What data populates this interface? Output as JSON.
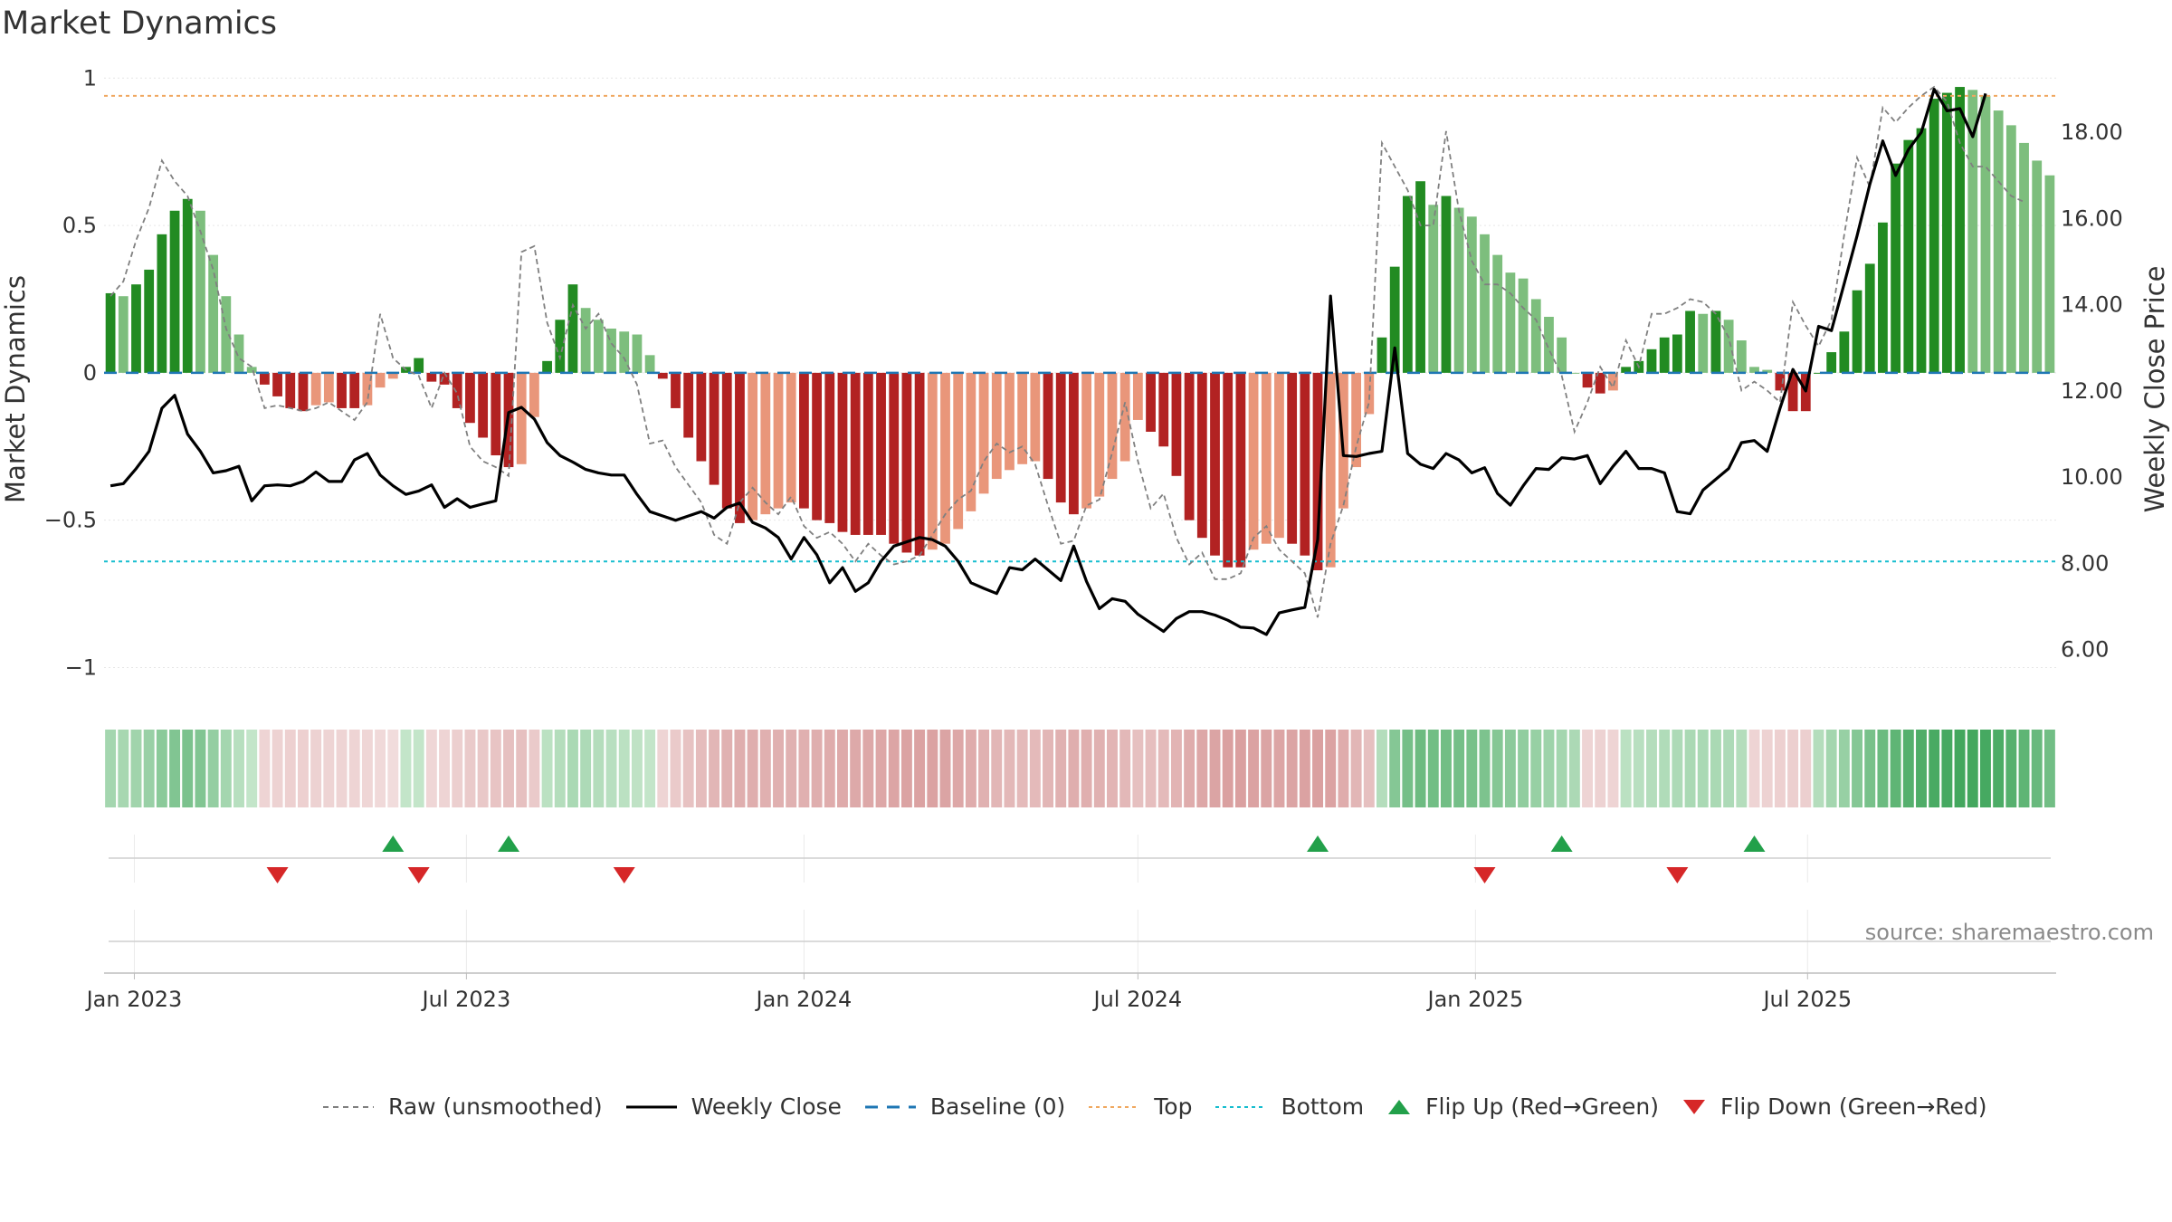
{
  "title": "Market Dynamics",
  "source_note": "source: sharemaestro.com",
  "chart_data": {
    "type": "bar",
    "title": "Market Dynamics",
    "ylabel_left": "Market Dynamics",
    "ylabel_right": "Weekly Close Price",
    "ylim_left": [
      -1.1,
      1.05
    ],
    "ylim_right": [
      4.9,
      19.6
    ],
    "left_ticks": [
      {
        "v": 1,
        "label": "1"
      },
      {
        "v": 0.5,
        "label": "0.5"
      },
      {
        "v": 0,
        "label": "0"
      },
      {
        "v": -0.5,
        "label": "−0.5"
      },
      {
        "v": -1,
        "label": "−1"
      }
    ],
    "right_ticks": [
      {
        "v": 18,
        "label": "18.00"
      },
      {
        "v": 16,
        "label": "16.00"
      },
      {
        "v": 14,
        "label": "14.00"
      },
      {
        "v": 12,
        "label": "12.00"
      },
      {
        "v": 10,
        "label": "10.00"
      },
      {
        "v": 8,
        "label": "8.00"
      },
      {
        "v": 6,
        "label": "6.00"
      }
    ],
    "x_start": "2022-12-19",
    "x_ticks": [
      {
        "date": "2023-01-01",
        "label": "Jan 2023"
      },
      {
        "date": "2023-07-01",
        "label": "Jul 2023"
      },
      {
        "date": "2024-01-01",
        "label": "Jan 2024"
      },
      {
        "date": "2024-07-01",
        "label": "Jul 2024"
      },
      {
        "date": "2025-01-01",
        "label": "Jan 2025"
      },
      {
        "date": "2025-07-01",
        "label": "Jul 2025"
      }
    ],
    "top_level": 0.94,
    "bottom_level": -0.64,
    "baseline": 0,
    "series": [
      {
        "name": "Market Dynamics",
        "values": [
          0.27,
          0.26,
          0.3,
          0.35,
          0.47,
          0.55,
          0.59,
          0.55,
          0.4,
          0.26,
          0.13,
          0.02,
          -0.04,
          -0.08,
          -0.12,
          -0.13,
          -0.11,
          -0.1,
          -0.12,
          -0.12,
          -0.11,
          -0.05,
          -0.02,
          0.02,
          0.05,
          -0.03,
          -0.04,
          -0.12,
          -0.17,
          -0.22,
          -0.28,
          -0.32,
          -0.31,
          -0.15,
          0.04,
          0.18,
          0.3,
          0.22,
          0.18,
          0.15,
          0.14,
          0.13,
          0.06,
          -0.02,
          -0.12,
          -0.22,
          -0.3,
          -0.38,
          -0.46,
          -0.51,
          -0.5,
          -0.48,
          -0.46,
          -0.44,
          -0.46,
          -0.5,
          -0.51,
          -0.54,
          -0.55,
          -0.55,
          -0.55,
          -0.58,
          -0.61,
          -0.62,
          -0.6,
          -0.58,
          -0.53,
          -0.47,
          -0.41,
          -0.36,
          -0.33,
          -0.31,
          -0.3,
          -0.36,
          -0.44,
          -0.48,
          -0.46,
          -0.42,
          -0.36,
          -0.3,
          -0.16,
          -0.2,
          -0.25,
          -0.35,
          -0.5,
          -0.56,
          -0.62,
          -0.66,
          -0.66,
          -0.6,
          -0.58,
          -0.56,
          -0.58,
          -0.62,
          -0.67,
          -0.66,
          -0.46,
          -0.32,
          -0.14,
          0.12,
          0.36,
          0.6,
          0.65,
          0.57,
          0.6,
          0.56,
          0.53,
          0.47,
          0.4,
          0.34,
          0.32,
          0.25,
          0.19,
          0.12,
          0,
          -0.05,
          -0.07,
          -0.06,
          0.02,
          0.04,
          0.08,
          0.12,
          0.13,
          0.21,
          0.2,
          0.21,
          0.18,
          0.11,
          0.02,
          0.01,
          -0.06,
          -0.13,
          -0.13,
          0,
          0.07,
          0.14,
          0.28,
          0.37,
          0.51,
          0.71,
          0.79,
          0.83,
          0.93,
          0.95,
          0.97,
          0.96,
          0.94,
          0.89,
          0.84,
          0.78,
          0.72,
          0.67
        ]
      },
      {
        "name": "Raw (unsmoothed)",
        "values": [
          0.26,
          0.31,
          0.45,
          0.56,
          0.72,
          0.65,
          0.6,
          0.48,
          0.35,
          0.15,
          0.05,
          0.02,
          -0.12,
          -0.11,
          -0.12,
          -0.13,
          -0.12,
          -0.1,
          -0.13,
          -0.16,
          -0.1,
          0.2,
          0.05,
          0.01,
          -0.01,
          -0.12,
          0,
          -0.07,
          -0.25,
          -0.3,
          -0.32,
          -0.35,
          0.41,
          0.43,
          0.17,
          0.05,
          0.23,
          0.15,
          0.2,
          0.1,
          0.05,
          -0.04,
          -0.24,
          -0.23,
          -0.32,
          -0.38,
          -0.44,
          -0.55,
          -0.58,
          -0.44,
          -0.39,
          -0.44,
          -0.48,
          -0.42,
          -0.52,
          -0.56,
          -0.54,
          -0.58,
          -0.64,
          -0.58,
          -0.62,
          -0.65,
          -0.64,
          -0.62,
          -0.55,
          -0.48,
          -0.43,
          -0.4,
          -0.3,
          -0.24,
          -0.27,
          -0.25,
          -0.31,
          -0.45,
          -0.58,
          -0.57,
          -0.45,
          -0.43,
          -0.27,
          -0.1,
          -0.3,
          -0.46,
          -0.41,
          -0.56,
          -0.65,
          -0.61,
          -0.7,
          -0.7,
          -0.68,
          -0.56,
          -0.52,
          -0.6,
          -0.64,
          -0.68,
          -0.83,
          -0.58,
          -0.45,
          -0.25,
          -0.1,
          0.78,
          0.7,
          0.62,
          0.5,
          0.5,
          0.82,
          0.55,
          0.38,
          0.3,
          0.3,
          0.27,
          0.22,
          0.18,
          0.08,
          -0.01,
          -0.2,
          -0.1,
          0.02,
          -0.05,
          0.11,
          0.02,
          0.2,
          0.2,
          0.22,
          0.25,
          0.24,
          0.2,
          0.12,
          -0.06,
          -0.03,
          -0.06,
          -0.1,
          0.24,
          0.16,
          0.09,
          0.18,
          0.47,
          0.73,
          0.63,
          0.9,
          0.85,
          0.9,
          0.94,
          0.97,
          0.92,
          0.78,
          0.7,
          0.7,
          0.65,
          0.6,
          0.58
        ]
      },
      {
        "name": "Weekly Close",
        "values": [
          9.8,
          9.85,
          10.2,
          10.6,
          11.6,
          11.9,
          11.0,
          10.6,
          10.1,
          10.15,
          10.25,
          9.45,
          9.8,
          9.82,
          9.8,
          9.9,
          10.12,
          9.9,
          9.9,
          10.4,
          10.55,
          10.05,
          9.8,
          9.6,
          9.68,
          9.82,
          9.3,
          9.5,
          9.3,
          9.38,
          9.45,
          11.5,
          11.62,
          11.35,
          10.8,
          10.5,
          10.35,
          10.18,
          10.1,
          10.05,
          10.05,
          9.6,
          9.2,
          9.1,
          9.0,
          9.1,
          9.2,
          9.05,
          9.3,
          9.4,
          8.95,
          8.82,
          8.6,
          8.1,
          8.6,
          8.2,
          7.55,
          7.9,
          7.35,
          7.55,
          8.05,
          8.4,
          8.5,
          8.6,
          8.55,
          8.4,
          8.05,
          7.55,
          7.42,
          7.3,
          7.9,
          7.85,
          8.1,
          7.85,
          7.6,
          8.4,
          7.58,
          6.95,
          7.18,
          7.12,
          6.82,
          6.62,
          6.42,
          6.72,
          6.88,
          6.88,
          6.8,
          6.68,
          6.52,
          6.5,
          6.35,
          6.85,
          6.92,
          6.98,
          8.55,
          14.2,
          10.5,
          10.48,
          10.55,
          10.6,
          13.0,
          10.55,
          10.3,
          10.2,
          10.55,
          10.4,
          10.1,
          10.22,
          9.62,
          9.35,
          9.8,
          10.2,
          10.18,
          10.45,
          10.42,
          10.5,
          9.85,
          10.25,
          10.6,
          10.2,
          10.2,
          10.1,
          9.2,
          9.15,
          9.7,
          9.95,
          10.2,
          10.8,
          10.85,
          10.6,
          11.6,
          12.5,
          12.0,
          13.5,
          13.4,
          14.5,
          15.6,
          16.8,
          17.8,
          17.0,
          17.6,
          18.0,
          19.0,
          18.5,
          18.55,
          17.9,
          18.9
        ]
      },
      {
        "name": "Baseline (0)",
        "values": [
          0
        ]
      },
      {
        "name": "Top",
        "values": [
          0.94
        ]
      },
      {
        "name": "Bottom",
        "values": [
          -0.64
        ]
      },
      {
        "name": "Flip Up (Red→Green)",
        "dates": [
          "2023-05-22",
          "2023-07-24",
          "2024-10-07",
          "2025-02-17",
          "2025-06-02"
        ]
      },
      {
        "name": "Flip Down (Green→Red)",
        "dates": [
          "2023-03-20",
          "2023-06-05",
          "2023-09-25",
          "2025-01-06",
          "2025-04-21"
        ]
      }
    ],
    "strip_levels": [
      0.3,
      0.28,
      0.32,
      0.37,
      0.46,
      0.52,
      0.56,
      0.52,
      0.4,
      0.3,
      0.18,
      0.1,
      -0.1,
      -0.12,
      -0.14,
      -0.14,
      -0.12,
      -0.1,
      -0.1,
      -0.1,
      -0.08,
      -0.05,
      -0.02,
      0.1,
      0.1,
      -0.08,
      -0.1,
      -0.15,
      -0.2,
      -0.22,
      -0.26,
      -0.3,
      -0.3,
      -0.2,
      0.15,
      0.2,
      0.26,
      0.24,
      0.2,
      0.17,
      0.15,
      0.13,
      0.1,
      -0.1,
      -0.2,
      -0.28,
      -0.34,
      -0.4,
      -0.45,
      -0.48,
      -0.48,
      -0.46,
      -0.46,
      -0.45,
      -0.46,
      -0.48,
      -0.5,
      -0.52,
      -0.53,
      -0.54,
      -0.55,
      -0.57,
      -0.59,
      -0.6,
      -0.6,
      -0.58,
      -0.55,
      -0.5,
      -0.45,
      -0.4,
      -0.38,
      -0.36,
      -0.36,
      -0.4,
      -0.45,
      -0.48,
      -0.47,
      -0.45,
      -0.42,
      -0.38,
      -0.3,
      -0.32,
      -0.36,
      -0.42,
      -0.5,
      -0.55,
      -0.58,
      -0.62,
      -0.62,
      -0.6,
      -0.58,
      -0.57,
      -0.58,
      -0.6,
      -0.62,
      -0.6,
      -0.5,
      -0.4,
      -0.3,
      0.2,
      0.5,
      0.6,
      0.65,
      0.62,
      0.62,
      0.6,
      0.58,
      0.55,
      0.5,
      0.45,
      0.42,
      0.38,
      0.34,
      0.3,
      0.25,
      -0.1,
      -0.12,
      -0.1,
      0.15,
      0.17,
      0.2,
      0.22,
      0.24,
      0.26,
      0.26,
      0.26,
      0.24,
      0.2,
      -0.1,
      -0.12,
      -0.14,
      -0.15,
      -0.15,
      0.2,
      0.3,
      0.38,
      0.5,
      0.58,
      0.66,
      0.74,
      0.8,
      0.84,
      0.88,
      0.9,
      0.92,
      0.92,
      0.9,
      0.86,
      0.8,
      0.74,
      0.68,
      0.62
    ],
    "colors": {
      "up_strong": "#228B22",
      "up_weak": "#7DBE7D",
      "down_strong": "#B22222",
      "down_weak": "#E9967A",
      "close_line": "#000000",
      "raw_line": "#808080",
      "baseline": "#1F77B4",
      "top": "#F0A860",
      "bottom": "#17BECF",
      "flip_up": "#22A04A",
      "flip_down": "#D62728"
    }
  },
  "legend": {
    "items": [
      {
        "label": "Raw (unsmoothed)",
        "icon": "dashed-grey-line"
      },
      {
        "label": "Weekly Close",
        "icon": "solid-black-line"
      },
      {
        "label": "Baseline (0)",
        "icon": "dashed-blue-line"
      },
      {
        "label": "Top",
        "icon": "dotted-orange-line"
      },
      {
        "label": "Bottom",
        "icon": "dotted-cyan-line"
      },
      {
        "label": "Flip Up (Red→Green)",
        "icon": "green-up-triangle"
      },
      {
        "label": "Flip Down (Green→Red)",
        "icon": "red-down-triangle"
      }
    ]
  }
}
